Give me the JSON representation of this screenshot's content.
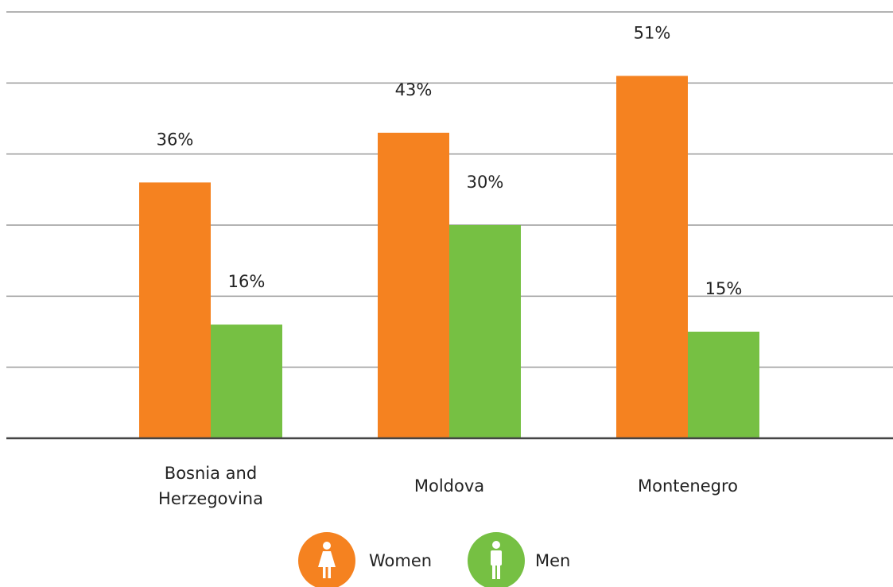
{
  "chart_data": {
    "type": "bar",
    "categories": [
      "Bosnia and Herzegovina",
      "Moldova",
      "Montenegro"
    ],
    "series": [
      {
        "name": "Women",
        "color": "#f58220",
        "values": [
          36,
          43,
          51
        ],
        "value_labels": [
          "36%",
          "43%",
          "51%"
        ]
      },
      {
        "name": "Men",
        "color": "#76c043",
        "values": [
          16,
          30,
          15
        ],
        "value_labels": [
          "16%",
          "30%",
          "15%"
        ]
      }
    ],
    "ylim": [
      0,
      60
    ],
    "yticks": [
      0,
      10,
      20,
      30,
      40,
      50,
      60
    ],
    "grid": true
  }
}
